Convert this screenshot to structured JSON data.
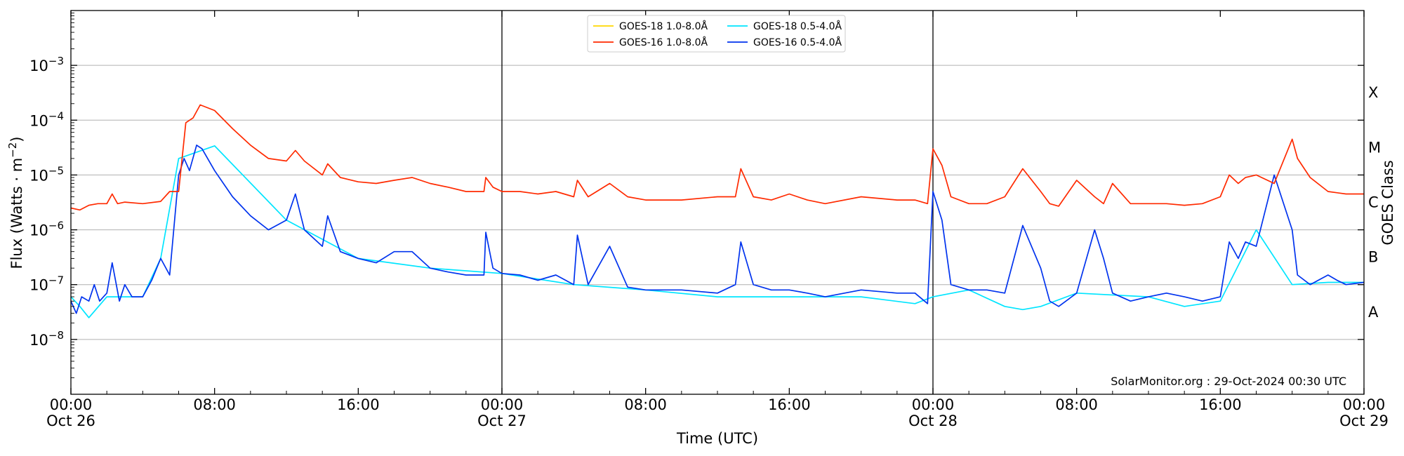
{
  "chart_data": {
    "type": "line",
    "title": "",
    "xlabel": "Time (UTC)",
    "ylabel": "Flux (Watts · m",
    "ylabel_sup": "−2",
    "ylabel_close": ")",
    "right_label": "GOES Class",
    "yscale": "log",
    "xlim": [
      "2024-10-26 00:00",
      "2024-10-29 00:00"
    ],
    "ylim": [
      1e-09,
      0.01
    ],
    "grid": "horizontal",
    "legend_position": "top-center",
    "credit": "SolarMonitor.org : 29-Oct-2024 00:30 UTC",
    "x_ticks": [
      {
        "hour": 0,
        "time": "00:00",
        "date": "Oct 26"
      },
      {
        "hour": 8,
        "time": "08:00",
        "date": ""
      },
      {
        "hour": 16,
        "time": "16:00",
        "date": ""
      },
      {
        "hour": 24,
        "time": "00:00",
        "date": "Oct 27"
      },
      {
        "hour": 32,
        "time": "08:00",
        "date": ""
      },
      {
        "hour": 40,
        "time": "16:00",
        "date": ""
      },
      {
        "hour": 48,
        "time": "00:00",
        "date": "Oct 28"
      },
      {
        "hour": 56,
        "time": "08:00",
        "date": ""
      },
      {
        "hour": 64,
        "time": "16:00",
        "date": ""
      },
      {
        "hour": 72,
        "time": "00:00",
        "date": "Oct 29"
      }
    ],
    "y_ticks": [
      {
        "exp": -8,
        "label": "10",
        "sup": "−8"
      },
      {
        "exp": -7,
        "label": "10",
        "sup": "−7"
      },
      {
        "exp": -6,
        "label": "10",
        "sup": "−6"
      },
      {
        "exp": -5,
        "label": "10",
        "sup": "−5"
      },
      {
        "exp": -4,
        "label": "10",
        "sup": "−4"
      },
      {
        "exp": -3,
        "label": "10",
        "sup": "−3"
      }
    ],
    "class_labels": [
      {
        "label": "A",
        "exp": -7.5
      },
      {
        "label": "B",
        "exp": -6.5
      },
      {
        "label": "C",
        "exp": -5.5
      },
      {
        "label": "M",
        "exp": -4.5
      },
      {
        "label": "X",
        "exp": -3.5
      }
    ],
    "day_boundaries": [
      24,
      48
    ],
    "series": [
      {
        "name": "GOES-18 1.0-8.0Å",
        "color": "#ffd700",
        "hours": [],
        "values": []
      },
      {
        "name": "GOES-18 0.5-4.0Å",
        "color": "#00e5ff",
        "hours": [
          0,
          0.5,
          1.0,
          2,
          3,
          4,
          5,
          6,
          8,
          12,
          16,
          20,
          24,
          28,
          32,
          36,
          38,
          40,
          44,
          47,
          48,
          50,
          52,
          53,
          54,
          56,
          60,
          62,
          64,
          66,
          68,
          70,
          72
        ],
        "values": [
          6e-08,
          4e-08,
          2.5e-08,
          6e-08,
          6e-08,
          6e-08,
          3e-07,
          2e-05,
          3.4e-05,
          1.5e-06,
          3e-07,
          2e-07,
          1.6e-07,
          1e-07,
          8e-08,
          6e-08,
          6e-08,
          6e-08,
          6e-08,
          4.5e-08,
          6e-08,
          8e-08,
          4e-08,
          3.5e-08,
          4e-08,
          7e-08,
          6e-08,
          4e-08,
          5e-08,
          1e-06,
          1e-07,
          1.1e-07,
          1.1e-07
        ]
      },
      {
        "name": "GOES-16 1.0-8.0Å",
        "color": "#ff2a00",
        "hours": [
          0,
          0.5,
          1,
          1.5,
          2,
          2.3,
          2.6,
          3,
          4,
          5,
          5.5,
          6,
          6.4,
          6.8,
          7.2,
          8,
          9,
          10,
          11,
          12,
          12.5,
          13,
          14,
          14.3,
          15,
          16,
          17,
          18,
          19,
          20,
          21,
          22,
          23,
          23.1,
          23.5,
          24,
          25,
          26,
          27,
          28,
          28.2,
          28.8,
          30,
          31,
          32,
          34,
          36,
          37,
          37.3,
          38,
          39,
          40,
          41,
          42,
          44,
          46,
          47,
          47.7,
          48,
          48.5,
          49,
          50,
          51,
          52,
          53,
          54,
          54.5,
          55,
          56,
          57,
          57.5,
          58,
          59,
          60,
          61,
          62,
          63,
          64,
          64.5,
          65,
          65.4,
          66,
          67,
          68,
          68.3,
          69,
          70,
          71,
          72
        ],
        "values": [
          2.5e-06,
          2.3e-06,
          2.8e-06,
          3e-06,
          3e-06,
          4.5e-06,
          3e-06,
          3.2e-06,
          3e-06,
          3.3e-06,
          5e-06,
          5e-06,
          9e-05,
          0.00011,
          0.00019,
          0.00015,
          7e-05,
          3.5e-05,
          2e-05,
          1.8e-05,
          2.8e-05,
          1.8e-05,
          1e-05,
          1.6e-05,
          9e-06,
          7.5e-06,
          7e-06,
          8e-06,
          9e-06,
          7e-06,
          6e-06,
          5e-06,
          5e-06,
          9e-06,
          6e-06,
          5e-06,
          5e-06,
          4.5e-06,
          5e-06,
          4e-06,
          8e-06,
          4e-06,
          7e-06,
          4e-06,
          3.5e-06,
          3.5e-06,
          4e-06,
          4e-06,
          1.3e-05,
          4e-06,
          3.5e-06,
          4.5e-06,
          3.5e-06,
          3e-06,
          4e-06,
          3.5e-06,
          3.5e-06,
          3e-06,
          3e-05,
          1.5e-05,
          4e-06,
          3e-06,
          3e-06,
          4e-06,
          1.3e-05,
          5e-06,
          3e-06,
          2.7e-06,
          8e-06,
          4e-06,
          3e-06,
          7e-06,
          3e-06,
          3e-06,
          3e-06,
          2.8e-06,
          3e-06,
          4e-06,
          1e-05,
          7e-06,
          9e-06,
          1e-05,
          7e-06,
          4.5e-05,
          2e-05,
          9e-06,
          5e-06,
          4.5e-06,
          4.5e-06
        ]
      },
      {
        "name": "GOES-16 0.5-4.0Å",
        "color": "#0033ee",
        "hours": [
          0,
          0.3,
          0.6,
          1,
          1.3,
          1.6,
          2,
          2.3,
          2.7,
          3,
          3.4,
          4,
          4.5,
          5,
          5.5,
          6,
          6.3,
          6.6,
          7,
          7.3,
          8,
          9,
          10,
          11,
          12,
          12.5,
          13,
          14,
          14.3,
          15,
          16,
          17,
          18,
          19,
          20,
          21,
          22,
          23,
          23.1,
          23.5,
          24,
          25,
          26,
          27,
          28,
          28.2,
          28.8,
          30,
          31,
          32,
          34,
          36,
          37,
          37.3,
          38,
          39,
          40,
          41,
          42,
          44,
          46,
          47,
          47.7,
          48,
          48.5,
          49,
          50,
          51,
          52,
          53,
          54,
          54.5,
          55,
          56,
          57,
          57.5,
          58,
          59,
          60,
          61,
          62,
          63,
          64,
          64.5,
          65,
          65.4,
          66,
          67,
          68,
          68.3,
          69,
          70,
          70.5,
          71,
          72
        ],
        "values": [
          5e-08,
          3e-08,
          6e-08,
          5e-08,
          1e-07,
          5e-08,
          7e-08,
          2.5e-07,
          5e-08,
          1e-07,
          6e-08,
          6e-08,
          1.2e-07,
          3e-07,
          1.5e-07,
          1e-05,
          2e-05,
          1.2e-05,
          3.5e-05,
          3e-05,
          1.2e-05,
          4e-06,
          1.8e-06,
          1e-06,
          1.5e-06,
          4.5e-06,
          1e-06,
          5e-07,
          1.8e-06,
          4e-07,
          3e-07,
          2.5e-07,
          4e-07,
          4e-07,
          2e-07,
          1.7e-07,
          1.5e-07,
          1.5e-07,
          9e-07,
          2e-07,
          1.6e-07,
          1.5e-07,
          1.2e-07,
          1.5e-07,
          1e-07,
          8e-07,
          1e-07,
          5e-07,
          9e-08,
          8e-08,
          8e-08,
          7e-08,
          1e-07,
          6e-07,
          1e-07,
          8e-08,
          8e-08,
          7e-08,
          6e-08,
          8e-08,
          7e-08,
          7e-08,
          4.5e-08,
          5e-06,
          1.5e-06,
          1e-07,
          8e-08,
          8e-08,
          7e-08,
          1.2e-06,
          2e-07,
          5e-08,
          4e-08,
          7e-08,
          1e-06,
          3e-07,
          7e-08,
          5e-08,
          6e-08,
          7e-08,
          6e-08,
          5e-08,
          6e-08,
          6e-07,
          3e-07,
          6e-07,
          5e-07,
          1e-05,
          1e-06,
          1.5e-07,
          1e-07,
          1.5e-07,
          1.2e-07,
          1e-07,
          1.1e-07
        ]
      }
    ]
  }
}
